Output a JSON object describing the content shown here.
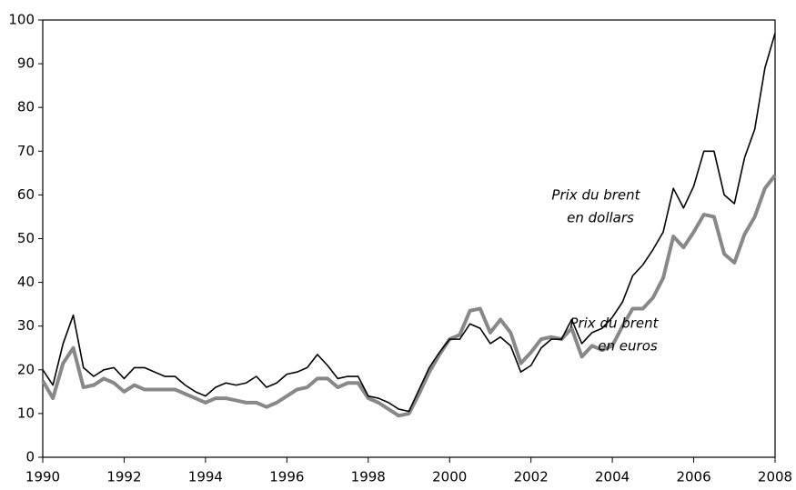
{
  "chart_data": {
    "type": "line",
    "x": [
      1990,
      1990.25,
      1990.5,
      1990.75,
      1991,
      1991.25,
      1991.5,
      1991.75,
      1992,
      1992.25,
      1992.5,
      1992.75,
      1993,
      1993.25,
      1993.5,
      1993.75,
      1994,
      1994.25,
      1994.5,
      1994.75,
      1995,
      1995.25,
      1995.5,
      1995.75,
      1996,
      1996.25,
      1996.5,
      1996.75,
      1997,
      1997.25,
      1997.5,
      1997.75,
      1998,
      1998.25,
      1998.5,
      1998.75,
      1999,
      1999.25,
      1999.5,
      1999.75,
      2000,
      2000.25,
      2000.5,
      2000.75,
      2001,
      2001.25,
      2001.5,
      2001.75,
      2002,
      2002.25,
      2002.5,
      2002.75,
      2003,
      2003.25,
      2003.5,
      2003.75,
      2004,
      2004.25,
      2004.5,
      2004.75,
      2005,
      2005.25,
      2005.5,
      2005.75,
      2006,
      2006.25,
      2006.5,
      2006.75,
      2007,
      2007.25,
      2007.5,
      2007.75,
      2008
    ],
    "series": [
      {
        "name": "Prix du brent en dollars",
        "color": "#000000",
        "values": [
          20,
          16.5,
          26,
          32.5,
          20.5,
          18.5,
          20,
          20.5,
          18,
          20.5,
          20.5,
          19.5,
          18.5,
          18.5,
          16.5,
          15,
          14,
          16,
          17,
          16.5,
          17,
          18.5,
          16,
          17,
          19,
          19.5,
          20.5,
          23.5,
          21,
          18,
          18.5,
          18.5,
          14,
          13.5,
          12.5,
          11,
          10.5,
          15.5,
          20.5,
          24,
          27,
          27,
          30.5,
          29.5,
          26,
          27.5,
          25.5,
          19.5,
          21,
          25,
          27,
          27,
          31.5,
          26,
          28.5,
          29.5,
          32,
          35.5,
          41.5,
          44,
          47.5,
          51.5,
          61.5,
          57,
          62,
          70,
          70,
          60,
          58,
          68.5,
          75,
          89,
          97
        ]
      },
      {
        "name": "Prix du brent en euros",
        "color": "#888888",
        "values": [
          17.5,
          13.5,
          21.5,
          25,
          16,
          16.5,
          18,
          17,
          15,
          16.5,
          15.5,
          15.5,
          15.5,
          15.5,
          14.5,
          13.5,
          12.5,
          13.5,
          13.5,
          13,
          12.5,
          12.5,
          11.5,
          12.5,
          14,
          15.5,
          16,
          18,
          18,
          16,
          17,
          17,
          13.5,
          12.5,
          11,
          9.5,
          10,
          14.5,
          19.5,
          23.5,
          27,
          28,
          33.5,
          34,
          28.5,
          31.5,
          28.5,
          21.5,
          24,
          27,
          27.5,
          27,
          29.5,
          23,
          25.5,
          24.5,
          25.5,
          30,
          34,
          34,
          36.5,
          41,
          50.5,
          48,
          51.5,
          55.5,
          55,
          46.5,
          44.5,
          51,
          55,
          61.5,
          64.5
        ]
      }
    ],
    "annotations": [
      [
        "Prix du brent",
        "en dollars"
      ],
      [
        "Prix du brent",
        "en euros"
      ]
    ],
    "xlim": [
      1990,
      2008
    ],
    "xticks": [
      1990,
      1992,
      1994,
      1996,
      1998,
      2000,
      2002,
      2004,
      2006,
      2008
    ],
    "ylim": [
      0,
      100
    ],
    "yticks": [
      0,
      10,
      20,
      30,
      40,
      50,
      60,
      70,
      80,
      90,
      100
    ],
    "grid": false
  }
}
